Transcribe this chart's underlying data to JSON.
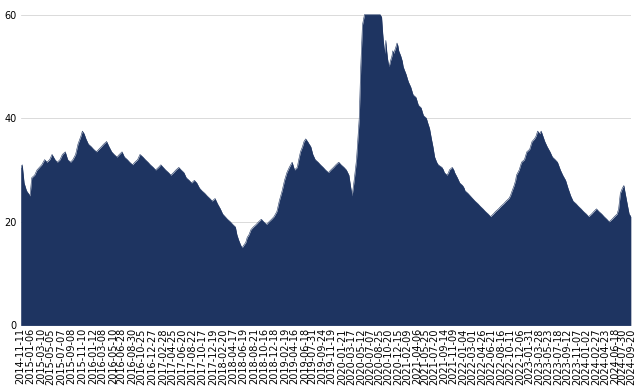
{
  "fill_color": "#1e3461",
  "background_color": "#ffffff",
  "grid_color": "#cccccc",
  "ylim": [
    0,
    62
  ],
  "yticks": [
    0,
    20,
    40,
    60
  ],
  "tick_fontsize": 7,
  "start_date": "2014-11-11",
  "end_date": "2024-09-20",
  "segments": [
    {
      "date": "2014-11-11",
      "pe": 30.5
    },
    {
      "date": "2014-11-20",
      "pe": 31.0
    },
    {
      "date": "2014-12-01",
      "pe": 27.5
    },
    {
      "date": "2014-12-15",
      "pe": 26.0
    },
    {
      "date": "2015-01-05",
      "pe": 25.0
    },
    {
      "date": "2015-01-15",
      "pe": 28.5
    },
    {
      "date": "2015-02-01",
      "pe": 29.0
    },
    {
      "date": "2015-02-15",
      "pe": 30.0
    },
    {
      "date": "2015-03-01",
      "pe": 30.5
    },
    {
      "date": "2015-03-15",
      "pe": 31.0
    },
    {
      "date": "2015-04-01",
      "pe": 32.0
    },
    {
      "date": "2015-04-15",
      "pe": 31.5
    },
    {
      "date": "2015-05-01",
      "pe": 32.0
    },
    {
      "date": "2015-05-15",
      "pe": 33.0
    },
    {
      "date": "2015-06-01",
      "pe": 32.0
    },
    {
      "date": "2015-06-15",
      "pe": 31.5
    },
    {
      "date": "2015-07-01",
      "pe": 32.0
    },
    {
      "date": "2015-07-15",
      "pe": 33.0
    },
    {
      "date": "2015-08-01",
      "pe": 33.5
    },
    {
      "date": "2015-08-15",
      "pe": 32.0
    },
    {
      "date": "2015-09-01",
      "pe": 31.5
    },
    {
      "date": "2015-09-15",
      "pe": 32.0
    },
    {
      "date": "2015-10-01",
      "pe": 33.0
    },
    {
      "date": "2015-10-15",
      "pe": 35.0
    },
    {
      "date": "2015-11-01",
      "pe": 36.5
    },
    {
      "date": "2015-11-10",
      "pe": 37.5
    },
    {
      "date": "2015-11-20",
      "pe": 37.0
    },
    {
      "date": "2015-12-01",
      "pe": 36.0
    },
    {
      "date": "2015-12-15",
      "pe": 35.0
    },
    {
      "date": "2016-01-01",
      "pe": 34.5
    },
    {
      "date": "2016-01-15",
      "pe": 34.0
    },
    {
      "date": "2016-02-01",
      "pe": 33.5
    },
    {
      "date": "2016-02-15",
      "pe": 34.0
    },
    {
      "date": "2016-03-01",
      "pe": 34.5
    },
    {
      "date": "2016-03-15",
      "pe": 35.0
    },
    {
      "date": "2016-04-01",
      "pe": 35.5
    },
    {
      "date": "2016-04-15",
      "pe": 34.5
    },
    {
      "date": "2016-05-01",
      "pe": 33.5
    },
    {
      "date": "2016-05-15",
      "pe": 33.0
    },
    {
      "date": "2016-06-01",
      "pe": 32.5
    },
    {
      "date": "2016-06-15",
      "pe": 33.0
    },
    {
      "date": "2016-07-01",
      "pe": 33.5
    },
    {
      "date": "2016-07-15",
      "pe": 32.5
    },
    {
      "date": "2016-08-01",
      "pe": 32.0
    },
    {
      "date": "2016-08-15",
      "pe": 31.5
    },
    {
      "date": "2016-09-01",
      "pe": 31.0
    },
    {
      "date": "2016-09-15",
      "pe": 31.5
    },
    {
      "date": "2016-10-01",
      "pe": 32.0
    },
    {
      "date": "2016-10-15",
      "pe": 33.0
    },
    {
      "date": "2016-11-01",
      "pe": 32.5
    },
    {
      "date": "2016-11-15",
      "pe": 32.0
    },
    {
      "date": "2016-12-01",
      "pe": 31.5
    },
    {
      "date": "2016-12-15",
      "pe": 31.0
    },
    {
      "date": "2017-01-01",
      "pe": 30.5
    },
    {
      "date": "2017-01-15",
      "pe": 30.0
    },
    {
      "date": "2017-02-01",
      "pe": 30.5
    },
    {
      "date": "2017-02-15",
      "pe": 31.0
    },
    {
      "date": "2017-03-01",
      "pe": 30.5
    },
    {
      "date": "2017-03-15",
      "pe": 30.0
    },
    {
      "date": "2017-04-01",
      "pe": 29.5
    },
    {
      "date": "2017-04-15",
      "pe": 29.0
    },
    {
      "date": "2017-05-01",
      "pe": 29.5
    },
    {
      "date": "2017-05-15",
      "pe": 30.0
    },
    {
      "date": "2017-06-01",
      "pe": 30.5
    },
    {
      "date": "2017-06-15",
      "pe": 30.0
    },
    {
      "date": "2017-07-01",
      "pe": 29.5
    },
    {
      "date": "2017-07-15",
      "pe": 28.5
    },
    {
      "date": "2017-08-01",
      "pe": 28.0
    },
    {
      "date": "2017-08-15",
      "pe": 27.5
    },
    {
      "date": "2017-09-01",
      "pe": 28.0
    },
    {
      "date": "2017-09-15",
      "pe": 27.5
    },
    {
      "date": "2017-10-01",
      "pe": 26.5
    },
    {
      "date": "2017-10-15",
      "pe": 26.0
    },
    {
      "date": "2017-11-01",
      "pe": 25.5
    },
    {
      "date": "2017-11-15",
      "pe": 25.0
    },
    {
      "date": "2017-12-01",
      "pe": 24.5
    },
    {
      "date": "2017-12-15",
      "pe": 24.0
    },
    {
      "date": "2018-01-01",
      "pe": 24.5
    },
    {
      "date": "2018-01-15",
      "pe": 23.5
    },
    {
      "date": "2018-02-01",
      "pe": 22.5
    },
    {
      "date": "2018-02-15",
      "pe": 21.5
    },
    {
      "date": "2018-03-01",
      "pe": 21.0
    },
    {
      "date": "2018-03-15",
      "pe": 20.5
    },
    {
      "date": "2018-04-01",
      "pe": 20.0
    },
    {
      "date": "2018-04-15",
      "pe": 19.5
    },
    {
      "date": "2018-05-01",
      "pe": 19.0
    },
    {
      "date": "2018-05-10",
      "pe": 17.5
    },
    {
      "date": "2018-05-20",
      "pe": 16.5
    },
    {
      "date": "2018-06-01",
      "pe": 15.5
    },
    {
      "date": "2018-06-10",
      "pe": 15.0
    },
    {
      "date": "2018-06-20",
      "pe": 15.5
    },
    {
      "date": "2018-07-01",
      "pe": 16.0
    },
    {
      "date": "2018-07-10",
      "pe": 17.0
    },
    {
      "date": "2018-07-20",
      "pe": 17.5
    },
    {
      "date": "2018-08-01",
      "pe": 18.5
    },
    {
      "date": "2018-08-15",
      "pe": 19.0
    },
    {
      "date": "2018-09-01",
      "pe": 19.5
    },
    {
      "date": "2018-09-15",
      "pe": 20.0
    },
    {
      "date": "2018-10-01",
      "pe": 20.5
    },
    {
      "date": "2018-10-15",
      "pe": 20.0
    },
    {
      "date": "2018-11-01",
      "pe": 19.5
    },
    {
      "date": "2018-11-15",
      "pe": 20.0
    },
    {
      "date": "2018-12-01",
      "pe": 20.5
    },
    {
      "date": "2018-12-15",
      "pe": 21.0
    },
    {
      "date": "2019-01-01",
      "pe": 22.0
    },
    {
      "date": "2019-01-15",
      "pe": 24.0
    },
    {
      "date": "2019-02-01",
      "pe": 26.0
    },
    {
      "date": "2019-02-15",
      "pe": 28.0
    },
    {
      "date": "2019-03-01",
      "pe": 29.5
    },
    {
      "date": "2019-03-15",
      "pe": 30.5
    },
    {
      "date": "2019-04-01",
      "pe": 31.5
    },
    {
      "date": "2019-04-15",
      "pe": 30.0
    },
    {
      "date": "2019-05-01",
      "pe": 30.5
    },
    {
      "date": "2019-05-10",
      "pe": 32.0
    },
    {
      "date": "2019-05-20",
      "pe": 33.5
    },
    {
      "date": "2019-06-01",
      "pe": 34.5
    },
    {
      "date": "2019-06-10",
      "pe": 35.5
    },
    {
      "date": "2019-06-20",
      "pe": 36.0
    },
    {
      "date": "2019-07-01",
      "pe": 35.5
    },
    {
      "date": "2019-07-10",
      "pe": 35.0
    },
    {
      "date": "2019-07-20",
      "pe": 34.5
    },
    {
      "date": "2019-08-01",
      "pe": 33.0
    },
    {
      "date": "2019-08-15",
      "pe": 32.0
    },
    {
      "date": "2019-09-01",
      "pe": 31.5
    },
    {
      "date": "2019-09-15",
      "pe": 31.0
    },
    {
      "date": "2019-10-01",
      "pe": 30.5
    },
    {
      "date": "2019-10-15",
      "pe": 30.0
    },
    {
      "date": "2019-11-01",
      "pe": 29.5
    },
    {
      "date": "2019-11-15",
      "pe": 30.0
    },
    {
      "date": "2019-12-01",
      "pe": 30.5
    },
    {
      "date": "2019-12-15",
      "pe": 31.0
    },
    {
      "date": "2020-01-01",
      "pe": 31.5
    },
    {
      "date": "2020-01-15",
      "pe": 31.0
    },
    {
      "date": "2020-02-01",
      "pe": 30.5
    },
    {
      "date": "2020-02-15",
      "pe": 30.0
    },
    {
      "date": "2020-03-01",
      "pe": 29.0
    },
    {
      "date": "2020-03-10",
      "pe": 27.0
    },
    {
      "date": "2020-03-20",
      "pe": 25.0
    },
    {
      "date": "2020-04-01",
      "pe": 28.0
    },
    {
      "date": "2020-04-15",
      "pe": 32.0
    },
    {
      "date": "2020-05-01",
      "pe": 40.0
    },
    {
      "date": "2020-05-10",
      "pe": 50.0
    },
    {
      "date": "2020-05-20",
      "pe": 58.0
    },
    {
      "date": "2020-06-01",
      "pe": 60.0
    },
    {
      "date": "2020-06-10",
      "pe": 60.0
    },
    {
      "date": "2020-06-20",
      "pe": 60.0
    },
    {
      "date": "2020-07-01",
      "pe": 60.0
    },
    {
      "date": "2020-07-10",
      "pe": 60.0
    },
    {
      "date": "2020-07-20",
      "pe": 60.0
    },
    {
      "date": "2020-08-01",
      "pe": 60.0
    },
    {
      "date": "2020-08-10",
      "pe": 60.0
    },
    {
      "date": "2020-08-20",
      "pe": 60.0
    },
    {
      "date": "2020-09-01",
      "pe": 60.0
    },
    {
      "date": "2020-09-10",
      "pe": 59.5
    },
    {
      "date": "2020-09-15",
      "pe": 57.0
    },
    {
      "date": "2020-09-20",
      "pe": 55.0
    },
    {
      "date": "2020-09-25",
      "pe": 53.5
    },
    {
      "date": "2020-10-01",
      "pe": 52.5
    },
    {
      "date": "2020-10-05",
      "pe": 55.0
    },
    {
      "date": "2020-10-10",
      "pe": 53.0
    },
    {
      "date": "2020-10-15",
      "pe": 51.5
    },
    {
      "date": "2020-10-20",
      "pe": 50.5
    },
    {
      "date": "2020-10-25",
      "pe": 50.0
    },
    {
      "date": "2020-11-01",
      "pe": 51.0
    },
    {
      "date": "2020-11-10",
      "pe": 52.0
    },
    {
      "date": "2020-11-15",
      "pe": 53.0
    },
    {
      "date": "2020-11-20",
      "pe": 52.5
    },
    {
      "date": "2020-12-01",
      "pe": 53.5
    },
    {
      "date": "2020-12-10",
      "pe": 54.5
    },
    {
      "date": "2020-12-15",
      "pe": 54.0
    },
    {
      "date": "2020-12-20",
      "pe": 53.0
    },
    {
      "date": "2021-01-01",
      "pe": 52.0
    },
    {
      "date": "2021-01-10",
      "pe": 51.0
    },
    {
      "date": "2021-01-15",
      "pe": 50.0
    },
    {
      "date": "2021-01-20",
      "pe": 49.5
    },
    {
      "date": "2021-02-01",
      "pe": 48.5
    },
    {
      "date": "2021-02-10",
      "pe": 47.5
    },
    {
      "date": "2021-02-15",
      "pe": 47.0
    },
    {
      "date": "2021-03-01",
      "pe": 46.0
    },
    {
      "date": "2021-03-10",
      "pe": 45.0
    },
    {
      "date": "2021-03-15",
      "pe": 44.5
    },
    {
      "date": "2021-04-01",
      "pe": 44.0
    },
    {
      "date": "2021-04-10",
      "pe": 43.0
    },
    {
      "date": "2021-04-15",
      "pe": 42.5
    },
    {
      "date": "2021-05-01",
      "pe": 42.0
    },
    {
      "date": "2021-05-10",
      "pe": 41.0
    },
    {
      "date": "2021-05-15",
      "pe": 40.5
    },
    {
      "date": "2021-06-01",
      "pe": 40.0
    },
    {
      "date": "2021-06-10",
      "pe": 39.0
    },
    {
      "date": "2021-06-20",
      "pe": 38.0
    },
    {
      "date": "2021-07-01",
      "pe": 36.0
    },
    {
      "date": "2021-07-10",
      "pe": 34.5
    },
    {
      "date": "2021-07-15",
      "pe": 33.5
    },
    {
      "date": "2021-07-20",
      "pe": 32.5
    },
    {
      "date": "2021-08-01",
      "pe": 31.5
    },
    {
      "date": "2021-08-10",
      "pe": 31.0
    },
    {
      "date": "2021-09-01",
      "pe": 30.5
    },
    {
      "date": "2021-09-10",
      "pe": 30.0
    },
    {
      "date": "2021-09-15",
      "pe": 29.5
    },
    {
      "date": "2021-10-01",
      "pe": 29.0
    },
    {
      "date": "2021-10-10",
      "pe": 29.5
    },
    {
      "date": "2021-10-15",
      "pe": 30.0
    },
    {
      "date": "2021-11-01",
      "pe": 30.5
    },
    {
      "date": "2021-11-10",
      "pe": 30.0
    },
    {
      "date": "2021-11-15",
      "pe": 29.5
    },
    {
      "date": "2021-12-01",
      "pe": 28.5
    },
    {
      "date": "2021-12-15",
      "pe": 27.5
    },
    {
      "date": "2022-01-01",
      "pe": 27.0
    },
    {
      "date": "2022-01-10",
      "pe": 26.5
    },
    {
      "date": "2022-01-15",
      "pe": 26.0
    },
    {
      "date": "2022-02-01",
      "pe": 25.5
    },
    {
      "date": "2022-02-15",
      "pe": 25.0
    },
    {
      "date": "2022-03-01",
      "pe": 24.5
    },
    {
      "date": "2022-03-15",
      "pe": 24.0
    },
    {
      "date": "2022-04-01",
      "pe": 23.5
    },
    {
      "date": "2022-04-15",
      "pe": 23.0
    },
    {
      "date": "2022-05-01",
      "pe": 22.5
    },
    {
      "date": "2022-05-15",
      "pe": 22.0
    },
    {
      "date": "2022-06-01",
      "pe": 21.5
    },
    {
      "date": "2022-06-15",
      "pe": 21.0
    },
    {
      "date": "2022-07-01",
      "pe": 21.5
    },
    {
      "date": "2022-07-15",
      "pe": 22.0
    },
    {
      "date": "2022-08-01",
      "pe": 22.5
    },
    {
      "date": "2022-08-15",
      "pe": 23.0
    },
    {
      "date": "2022-09-01",
      "pe": 23.5
    },
    {
      "date": "2022-09-15",
      "pe": 24.0
    },
    {
      "date": "2022-10-01",
      "pe": 24.5
    },
    {
      "date": "2022-10-10",
      "pe": 25.0
    },
    {
      "date": "2022-10-15",
      "pe": 25.5
    },
    {
      "date": "2022-11-01",
      "pe": 27.0
    },
    {
      "date": "2022-11-10",
      "pe": 28.0
    },
    {
      "date": "2022-11-15",
      "pe": 29.0
    },
    {
      "date": "2022-12-01",
      "pe": 30.0
    },
    {
      "date": "2022-12-10",
      "pe": 31.0
    },
    {
      "date": "2022-12-15",
      "pe": 31.5
    },
    {
      "date": "2023-01-01",
      "pe": 32.0
    },
    {
      "date": "2023-01-10",
      "pe": 33.0
    },
    {
      "date": "2023-01-15",
      "pe": 33.5
    },
    {
      "date": "2023-02-01",
      "pe": 34.0
    },
    {
      "date": "2023-02-10",
      "pe": 35.0
    },
    {
      "date": "2023-02-15",
      "pe": 35.5
    },
    {
      "date": "2023-03-01",
      "pe": 36.0
    },
    {
      "date": "2023-03-10",
      "pe": 36.5
    },
    {
      "date": "2023-03-15",
      "pe": 37.0
    },
    {
      "date": "2023-03-20",
      "pe": 37.5
    },
    {
      "date": "2023-04-01",
      "pe": 37.0
    },
    {
      "date": "2023-04-10",
      "pe": 37.5
    },
    {
      "date": "2023-04-15",
      "pe": 37.0
    },
    {
      "date": "2023-05-01",
      "pe": 35.5
    },
    {
      "date": "2023-05-15",
      "pe": 34.5
    },
    {
      "date": "2023-06-01",
      "pe": 33.5
    },
    {
      "date": "2023-06-15",
      "pe": 32.5
    },
    {
      "date": "2023-07-01",
      "pe": 32.0
    },
    {
      "date": "2023-07-15",
      "pe": 31.5
    },
    {
      "date": "2023-08-01",
      "pe": 30.0
    },
    {
      "date": "2023-08-15",
      "pe": 29.0
    },
    {
      "date": "2023-09-01",
      "pe": 28.0
    },
    {
      "date": "2023-09-15",
      "pe": 26.5
    },
    {
      "date": "2023-10-01",
      "pe": 25.0
    },
    {
      "date": "2023-10-15",
      "pe": 24.0
    },
    {
      "date": "2023-11-01",
      "pe": 23.5
    },
    {
      "date": "2023-11-15",
      "pe": 23.0
    },
    {
      "date": "2023-12-01",
      "pe": 22.5
    },
    {
      "date": "2023-12-15",
      "pe": 22.0
    },
    {
      "date": "2024-01-01",
      "pe": 21.5
    },
    {
      "date": "2024-01-15",
      "pe": 21.0
    },
    {
      "date": "2024-02-01",
      "pe": 21.5
    },
    {
      "date": "2024-02-15",
      "pe": 22.0
    },
    {
      "date": "2024-03-01",
      "pe": 22.5
    },
    {
      "date": "2024-03-15",
      "pe": 22.0
    },
    {
      "date": "2024-04-01",
      "pe": 21.5
    },
    {
      "date": "2024-04-15",
      "pe": 21.0
    },
    {
      "date": "2024-05-01",
      "pe": 20.5
    },
    {
      "date": "2024-05-15",
      "pe": 20.0
    },
    {
      "date": "2024-06-01",
      "pe": 20.5
    },
    {
      "date": "2024-06-15",
      "pe": 21.0
    },
    {
      "date": "2024-07-01",
      "pe": 21.5
    },
    {
      "date": "2024-07-10",
      "pe": 22.5
    },
    {
      "date": "2024-07-15",
      "pe": 24.0
    },
    {
      "date": "2024-07-20",
      "pe": 25.5
    },
    {
      "date": "2024-08-01",
      "pe": 26.5
    },
    {
      "date": "2024-08-10",
      "pe": 27.0
    },
    {
      "date": "2024-08-15",
      "pe": 26.0
    },
    {
      "date": "2024-09-01",
      "pe": 23.0
    },
    {
      "date": "2024-09-10",
      "pe": 21.5
    },
    {
      "date": "2024-09-20",
      "pe": 21.0
    }
  ],
  "xtick_labels": [
    "2014-11-11",
    "2015-01-06",
    "2015-03-10",
    "2015-05-05",
    "2015-07-07",
    "2015-09-08",
    "2015-11-10",
    "2016-01-12",
    "2016-03-08",
    "2016-05-10",
    "2016-06-28",
    "2016-08-30",
    "2016-10-25",
    "2016-12-27",
    "2017-02-28",
    "2017-04-25",
    "2017-06-20",
    "2017-08-22",
    "2017-10-17",
    "2017-12-19",
    "2018-02-20",
    "2018-04-17",
    "2018-06-19",
    "2018-08-21",
    "2018-10-16",
    "2018-12-18",
    "2019-02-19",
    "2019-04-16",
    "2019-06-18",
    "2019-07-31",
    "2019-09-24",
    "2019-11-19",
    "2020-01-21",
    "2020-03-17",
    "2020-05-12",
    "2020-07-07",
    "2020-08-25",
    "2020-10-20",
    "2020-12-15",
    "2021-02-09",
    "2021-04-06",
    "2021-05-25",
    "2021-07-20",
    "2021-09-14",
    "2021-11-09",
    "2022-01-04",
    "2022-03-01",
    "2022-04-26",
    "2022-06-21",
    "2022-08-16",
    "2022-10-11",
    "2022-12-06",
    "2023-01-31",
    "2023-03-28",
    "2023-05-23",
    "2023-07-18",
    "2023-09-12",
    "2023-11-07",
    "2024-01-02",
    "2024-02-27",
    "2024-04-23",
    "2024-06-18",
    "2024-07-30",
    "2024-09-20"
  ]
}
